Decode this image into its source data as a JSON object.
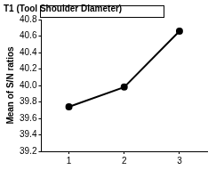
{
  "chart_data": {
    "type": "line",
    "title": "T1 (Tool Shoulder Diameter)",
    "y_label": "Mean of S/N ratios",
    "categories": [
      "1",
      "2",
      "3"
    ],
    "values": [
      39.74,
      39.98,
      40.66
    ],
    "color": "#000000",
    "marker": "circle",
    "line_style": "solid",
    "ylim": [
      39.2,
      40.8
    ],
    "yticks": [
      39.2,
      39.4,
      39.6,
      39.8,
      {
        "value": 40,
        "label": "40.0"
      },
      40.2,
      40.4,
      40.6,
      40.8
    ],
    "grid": false
  }
}
